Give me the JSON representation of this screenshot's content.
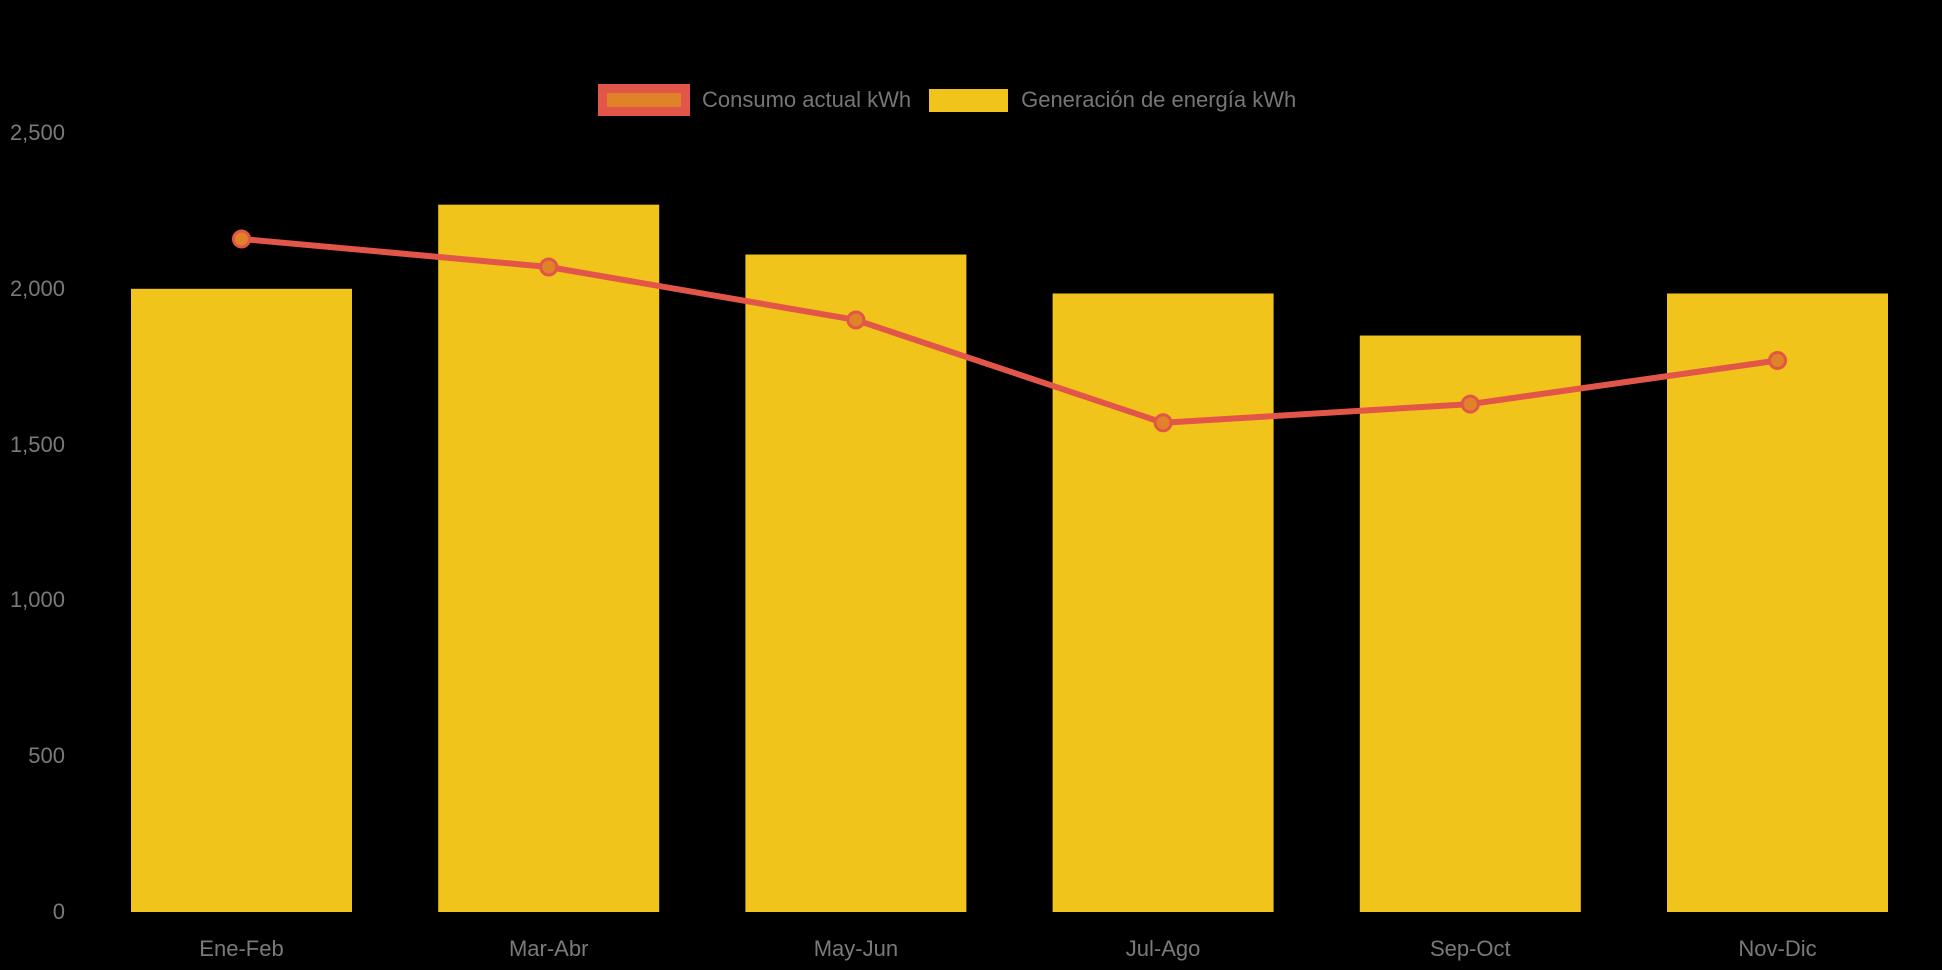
{
  "chart": {
    "background_color": "#000000",
    "label_color": "#7a7a7a",
    "legend_position": "top"
  },
  "chart_data": {
    "type": "bar+line",
    "title": "",
    "categories": [
      "Ene-Feb",
      "Mar-Abr",
      "May-Jun",
      "Jul-Ago",
      "Sep-Oct",
      "Nov-Dic"
    ],
    "series": [
      {
        "name": "Consumo actual kWh",
        "type": "line",
        "values": [
          2160,
          2070,
          1900,
          1570,
          1630,
          1770
        ],
        "line_color": "#e2564a",
        "point_color": "#e08228"
      },
      {
        "name": "Generación de energía kWh",
        "type": "bar",
        "values": [
          2000,
          2270,
          2110,
          1985,
          1850,
          1985
        ],
        "color": "#f0c41a"
      }
    ],
    "xlabel": "",
    "ylabel": "",
    "ylim": [
      0,
      2500
    ],
    "y_ticks": [
      0,
      500,
      1000,
      1500,
      2000,
      2500
    ],
    "y_tick_labels": [
      "0",
      "500",
      "1,000",
      "1,500",
      "2,000",
      "2,500"
    ],
    "grid": false,
    "legend_position": "top"
  }
}
